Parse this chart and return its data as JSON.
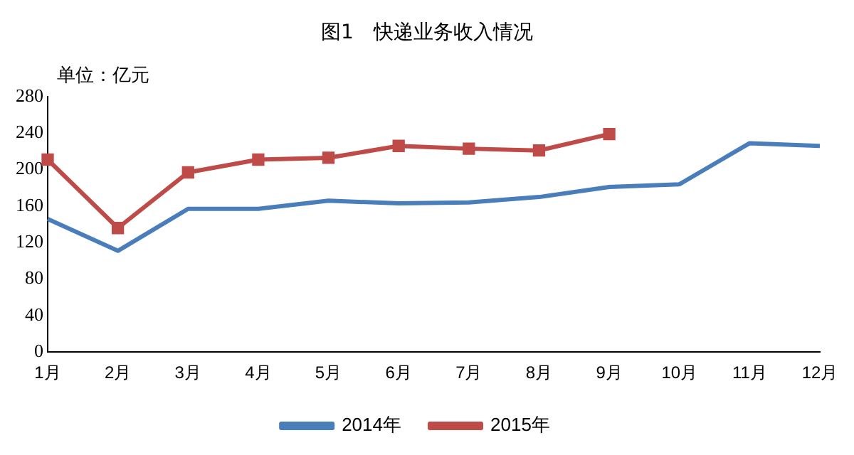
{
  "chart_data": {
    "type": "line",
    "title": "图1　快递业务收入情况",
    "ylabel": "单位：亿元",
    "categories": [
      "1月",
      "2月",
      "3月",
      "4月",
      "5月",
      "6月",
      "7月",
      "8月",
      "9月",
      "10月",
      "11月",
      "12月"
    ],
    "series": [
      {
        "name": "2014年",
        "color": "#4a7ebb",
        "marker": "none",
        "values": [
          146,
          111,
          157,
          157,
          166,
          163,
          164,
          170,
          181,
          184,
          229,
          226
        ]
      },
      {
        "name": "2015年",
        "color": "#be4b48",
        "marker": "square",
        "values": [
          211,
          136,
          197,
          211,
          213,
          226,
          223,
          221,
          239,
          null,
          null,
          null
        ]
      }
    ],
    "ylim": [
      0,
      280
    ],
    "yticks": [
      0,
      40,
      80,
      120,
      160,
      200,
      240,
      280
    ],
    "grid": false,
    "legend": "bottom"
  }
}
